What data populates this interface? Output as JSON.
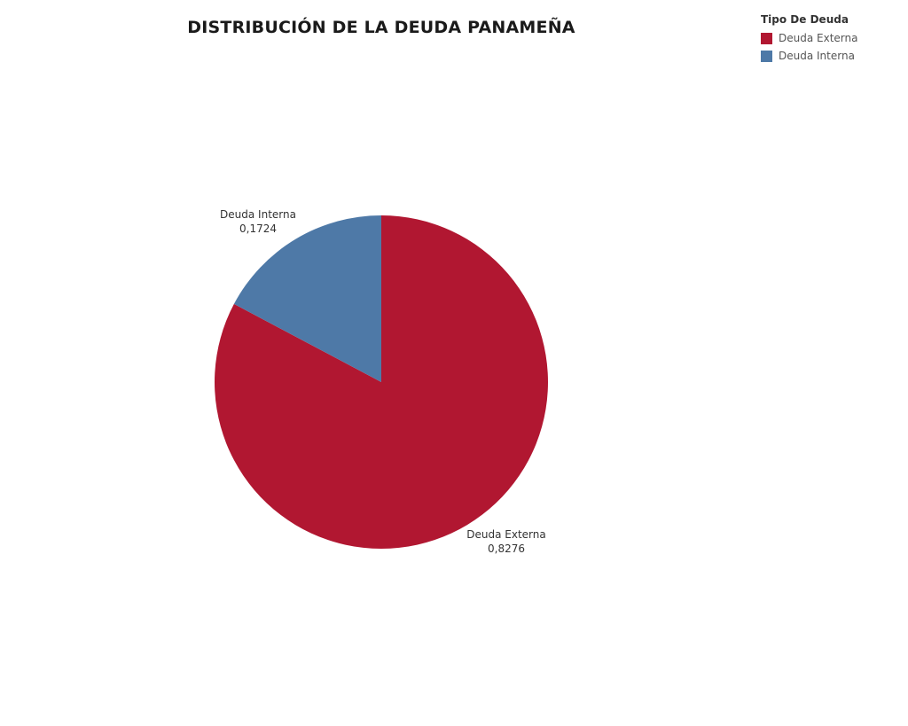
{
  "chart_data": {
    "type": "pie",
    "title": "DISTRIBUCIÓN DE LA DEUDA PANAMEÑA",
    "legend": {
      "title": "Tipo De Deuda",
      "placement": "top-right"
    },
    "slices": [
      {
        "name": "Deuda Externa",
        "value": 0.8276,
        "value_label": "0,8276",
        "color": "#B11731"
      },
      {
        "name": "Deuda Interna",
        "value": 0.1724,
        "value_label": "0,1724",
        "color": "#4E79A7"
      }
    ]
  }
}
